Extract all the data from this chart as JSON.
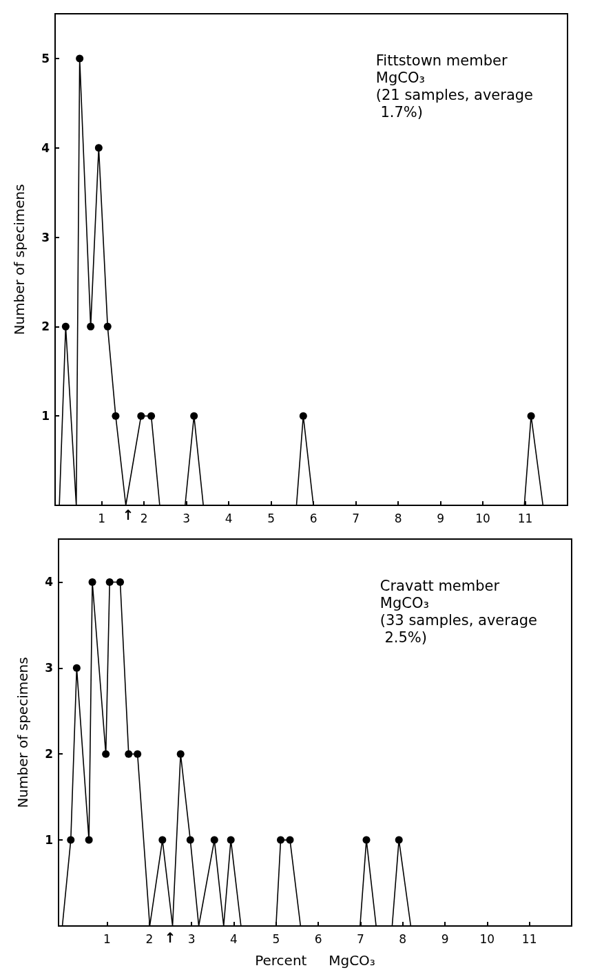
{
  "chart_data": [
    {
      "type": "line",
      "ylabel": "Number of specimens",
      "marker": "circle",
      "x": [
        0.0,
        0.15,
        0.4,
        0.48,
        0.74,
        0.93,
        1.14,
        1.33,
        1.57,
        1.93,
        2.17,
        2.37,
        2.97,
        3.18,
        3.4,
        5.6,
        5.76,
        6.0,
        10.98,
        11.14,
        11.42
      ],
      "series": [
        {
          "color": "#000000",
          "values": [
            0,
            2,
            0,
            5,
            2,
            4,
            2,
            1,
            0,
            1,
            1,
            0,
            0,
            1,
            0,
            0,
            1,
            0,
            0,
            1,
            0
          ]
        }
      ],
      "xlim": [
        -0.1,
        12
      ],
      "xticks": [
        1,
        2,
        3,
        4,
        5,
        6,
        7,
        8,
        9,
        10,
        11
      ],
      "ylim": [
        0,
        5.5
      ],
      "yticks": [
        1,
        2,
        3,
        4,
        5
      ],
      "annotations": [
        "Fittstown member\nMgCO₃\n(21 samples, average\n 1.7%)",
        "↑"
      ]
    },
    {
      "type": "line",
      "ylabel": "Number of specimens",
      "xlabel": "Percent     MgCO₃",
      "marker": "circle",
      "x": [
        -0.06,
        0.14,
        0.28,
        0.57,
        0.65,
        0.97,
        1.06,
        1.31,
        1.51,
        1.72,
        2.01,
        2.31,
        2.55,
        2.74,
        2.97,
        3.17,
        3.54,
        3.76,
        3.93,
        4.17,
        5.0,
        5.11,
        5.33,
        5.58,
        6.99,
        7.14,
        7.37,
        7.75,
        7.91,
        8.19
      ],
      "series": [
        {
          "color": "#000000",
          "values": [
            0,
            1,
            3,
            1,
            4,
            2,
            4,
            4,
            2,
            2,
            0,
            1,
            0,
            2,
            1,
            0,
            1,
            0,
            1,
            0,
            0,
            1,
            1,
            0,
            0,
            1,
            0,
            0,
            1,
            0
          ]
        }
      ],
      "xlim": [
        -0.15,
        12
      ],
      "xticks": [
        1,
        2,
        3,
        4,
        5,
        6,
        7,
        8,
        9,
        10,
        11
      ],
      "ylim": [
        0,
        4.5
      ],
      "yticks": [
        1,
        2,
        3,
        4
      ],
      "annotations": [
        "Cravatt member\nMgCO₃\n(33 samples, average\n 2.5%)",
        "↑"
      ]
    }
  ]
}
